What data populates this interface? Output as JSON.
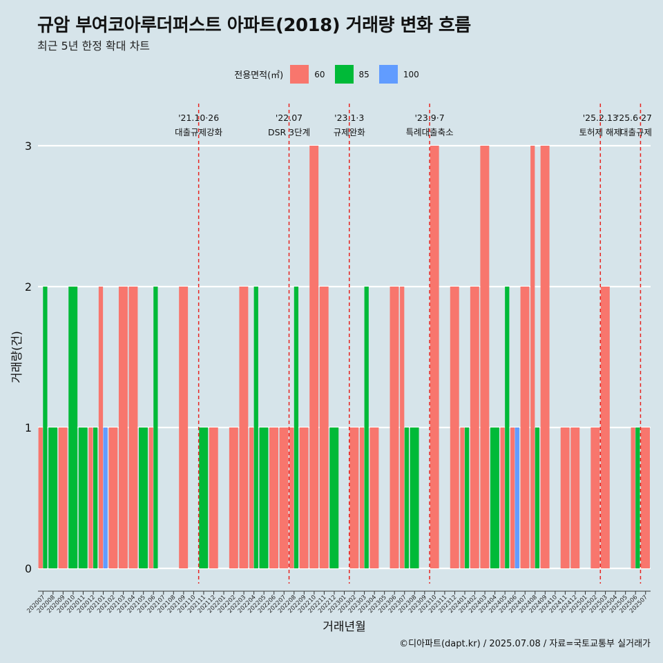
{
  "title": "규암 부여코아루더퍼스트 아파트(2018) 거래량 변화 흐름",
  "subtitle": "최근 5년 한정 확대 차트",
  "caption": "©디아파트(dapt.kr) / 2025.07.08 / 자료=국토교통부 실거래가",
  "legend": {
    "title": "전용면적(㎡)",
    "items": [
      {
        "label": "60",
        "color": "#f8766d"
      },
      {
        "label": "85",
        "color": "#00ba38"
      },
      {
        "label": "100",
        "color": "#619cff"
      }
    ]
  },
  "chart_data": {
    "type": "bar",
    "xlabel": "거래년월",
    "ylabel": "거래량(건)",
    "ylim": [
      0,
      3
    ],
    "yticks": [
      0,
      1,
      2,
      3
    ],
    "grid": true,
    "legend_position": "top",
    "categories": [
      "202007",
      "202008",
      "202009",
      "202010",
      "202011",
      "202012",
      "202101",
      "202102",
      "202103",
      "202104",
      "202105",
      "202106",
      "202107",
      "202108",
      "202109",
      "202110",
      "202111",
      "202112",
      "202201",
      "202202",
      "202203",
      "202204",
      "202205",
      "202206",
      "202207",
      "202208",
      "202209",
      "202210",
      "202211",
      "202212",
      "202301",
      "202302",
      "202303",
      "202304",
      "202305",
      "202306",
      "202307",
      "202308",
      "202309",
      "202310",
      "202311",
      "202312",
      "202401",
      "202402",
      "202403",
      "202404",
      "202405",
      "202406",
      "202407",
      "202408",
      "202409",
      "202410",
      "202411",
      "202412",
      "202501",
      "202502",
      "202503",
      "202504",
      "202505",
      "202506",
      "202507"
    ],
    "series": [
      {
        "name": "60",
        "color": "#f8766d",
        "values": [
          1,
          0,
          1,
          0,
          0,
          1,
          2,
          1,
          2,
          2,
          0,
          1,
          0,
          0,
          2,
          0,
          0,
          1,
          0,
          1,
          2,
          1,
          0,
          1,
          1,
          1,
          1,
          3,
          2,
          0,
          0,
          1,
          1,
          1,
          0,
          2,
          2,
          0,
          0,
          3,
          0,
          2,
          1,
          2,
          3,
          0,
          1,
          1,
          2,
          3,
          3,
          0,
          1,
          1,
          0,
          1,
          2,
          0,
          0,
          1,
          1
        ]
      },
      {
        "name": "85",
        "color": "#00ba38",
        "values": [
          2,
          1,
          0,
          2,
          1,
          1,
          0,
          0,
          0,
          0,
          1,
          2,
          0,
          0,
          0,
          0,
          1,
          0,
          0,
          0,
          0,
          2,
          1,
          0,
          0,
          2,
          0,
          0,
          0,
          1,
          0,
          0,
          2,
          0,
          0,
          0,
          1,
          1,
          0,
          0,
          0,
          0,
          1,
          0,
          0,
          1,
          2,
          0,
          0,
          1,
          0,
          0,
          0,
          0,
          0,
          0,
          0,
          0,
          0,
          1,
          0
        ]
      },
      {
        "name": "100",
        "color": "#619cff",
        "values": [
          0,
          0,
          0,
          0,
          0,
          0,
          1,
          0,
          0,
          0,
          0,
          0,
          0,
          0,
          0,
          0,
          0,
          0,
          0,
          0,
          0,
          0,
          0,
          0,
          0,
          0,
          0,
          0,
          0,
          0,
          0,
          0,
          0,
          0,
          0,
          0,
          0,
          0,
          0,
          0,
          0,
          0,
          0,
          0,
          0,
          0,
          0,
          1,
          0,
          0,
          0,
          0,
          0,
          0,
          0,
          0,
          0,
          0,
          0,
          0,
          0
        ]
      }
    ],
    "annotations": [
      {
        "date": "'21.10·26",
        "label": "대출규제강화",
        "after": "202110"
      },
      {
        "date": "'22.07",
        "label": "DSR 3단계",
        "after": "202207"
      },
      {
        "date": "'23.1·3",
        "label": "규제완화",
        "after": "202301"
      },
      {
        "date": "'23.9·7",
        "label": "특례대출축소",
        "after": "202309"
      },
      {
        "date": "'25.2.13",
        "label": "토허제 해제",
        "after": "202502"
      },
      {
        "date": "'25.6·27",
        "label": "대출규제",
        "after": "202506"
      }
    ]
  }
}
